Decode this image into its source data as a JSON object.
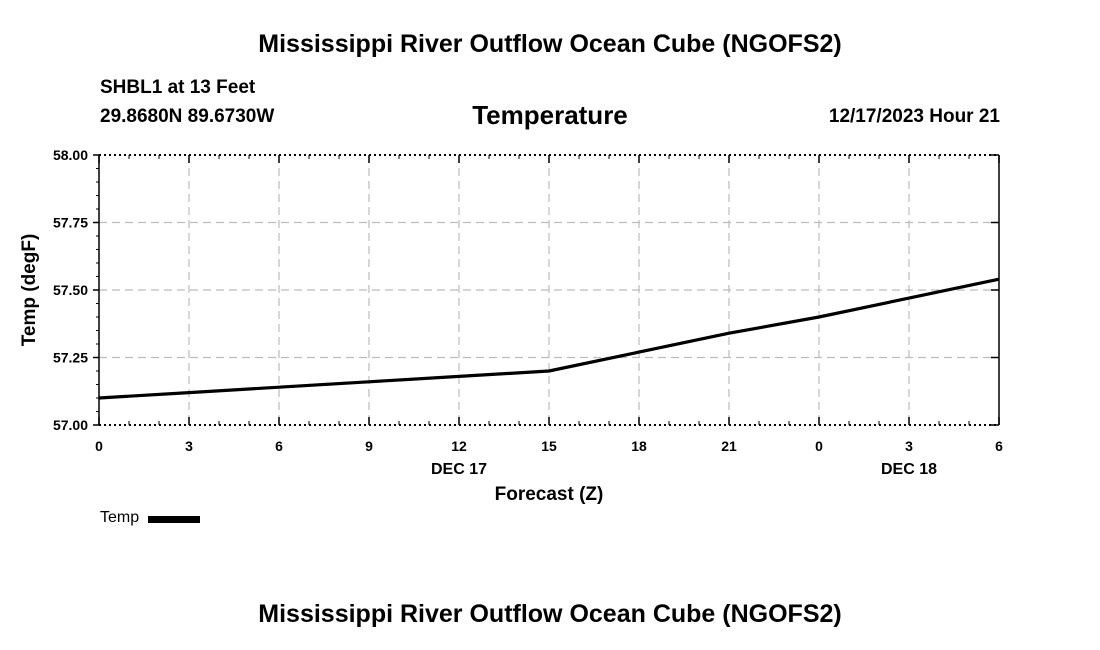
{
  "header": {
    "title": "Mississippi River Outflow Ocean Cube (NGOFS2)",
    "station": "SHBL1 at 13 Feet",
    "coords": "29.8680N  89.6730W",
    "subtitle": "Temperature",
    "datetime": "12/17/2023 Hour 21"
  },
  "footer": {
    "title": "Mississippi River Outflow Ocean Cube (NGOFS2)"
  },
  "chart_data": {
    "type": "line",
    "title": "Temperature",
    "xlabel": "Forecast (Z)",
    "ylabel": "Temp (degF)",
    "x": [
      0,
      3,
      6,
      9,
      12,
      15,
      18,
      21,
      24,
      27,
      30
    ],
    "x_tick_labels": [
      "0",
      "3",
      "6",
      "9",
      "12",
      "15",
      "18",
      "21",
      "0",
      "3",
      "6"
    ],
    "x_date_labels": [
      {
        "at": 12,
        "label": "DEC 17"
      },
      {
        "at": 27,
        "label": "DEC 18"
      }
    ],
    "xlim": [
      0,
      30
    ],
    "ylim": [
      57.0,
      58.0
    ],
    "y_ticks": [
      57.0,
      57.25,
      57.5,
      57.75,
      58.0
    ],
    "y_tick_labels": [
      "57.00",
      "57.25",
      "57.50",
      "57.75",
      "58.00"
    ],
    "grid": true,
    "legend_position": "bottom-left",
    "series": [
      {
        "name": "Temp",
        "color": "#000000",
        "x": [
          0,
          3,
          6,
          9,
          12,
          15,
          18,
          21,
          24,
          27,
          30
        ],
        "values": [
          57.1,
          57.12,
          57.14,
          57.16,
          57.18,
          57.2,
          57.27,
          57.34,
          57.4,
          57.47,
          57.54
        ]
      }
    ]
  }
}
